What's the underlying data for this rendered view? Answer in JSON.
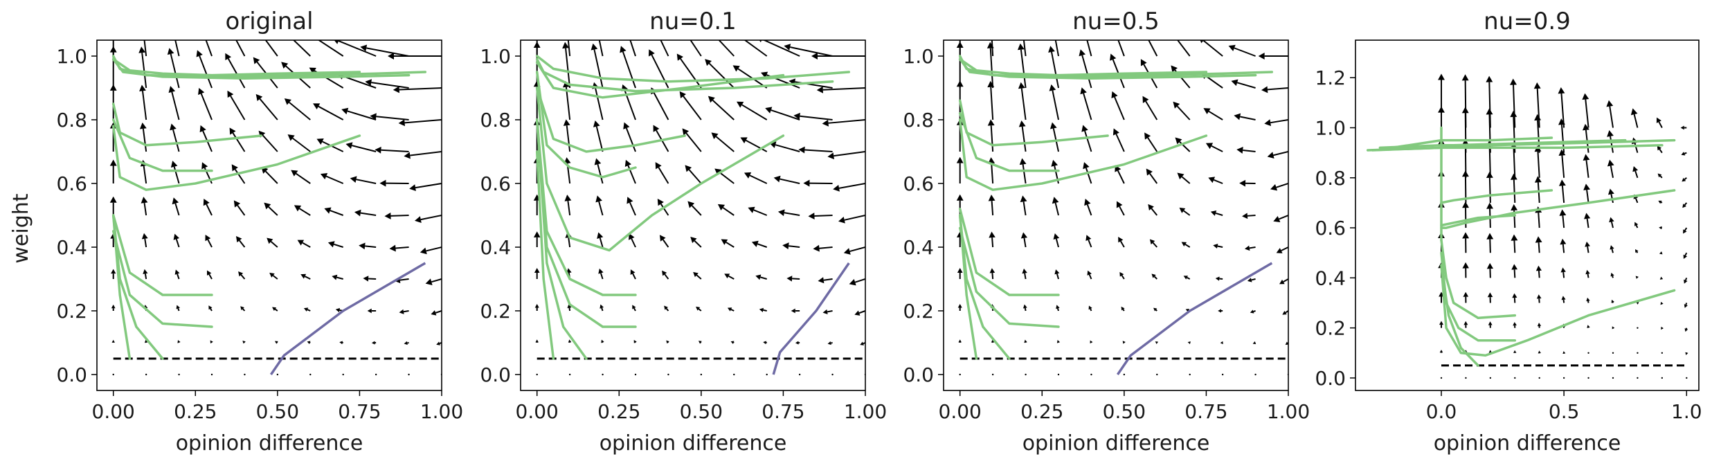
{
  "figure": {
    "ylabel": "weight"
  },
  "chart_data": [
    {
      "type": "quiver",
      "title": "original",
      "xlabel": "opinion difference",
      "ylabel": "weight",
      "xlim": [
        -0.05,
        1.0
      ],
      "ylim": [
        -0.05,
        1.05
      ],
      "xticks": [
        0.0,
        0.25,
        0.5,
        0.75,
        1.0
      ],
      "xticklabels": [
        "0.00",
        "0.25",
        "0.50",
        "0.75",
        "1.00"
      ],
      "yticks": [
        0.0,
        0.2,
        0.4,
        0.6,
        0.8,
        1.0
      ],
      "yticklabels": [
        "0.0",
        "0.2",
        "0.4",
        "0.6",
        "0.8",
        "1.0"
      ],
      "nu": 0.0,
      "threshold": 0.05,
      "trajectories": [
        {
          "x": [
            0.95,
            0.8,
            0.6,
            0.3,
            0.1,
            0.02,
            0.0
          ],
          "y": [
            0.95,
            0.945,
            0.94,
            0.935,
            0.94,
            0.96,
            1.0
          ]
        },
        {
          "x": [
            0.9,
            0.7,
            0.4,
            0.15,
            0.03,
            0.0
          ],
          "y": [
            0.94,
            0.935,
            0.93,
            0.935,
            0.95,
            0.99
          ]
        },
        {
          "x": [
            0.75,
            0.5,
            0.3,
            0.15,
            0.05,
            0.0
          ],
          "y": [
            0.95,
            0.945,
            0.94,
            0.945,
            0.955,
            0.99
          ]
        },
        {
          "x": [
            0.45,
            0.25,
            0.1,
            0.02,
            0.0
          ],
          "y": [
            0.75,
            0.73,
            0.72,
            0.76,
            0.85
          ]
        },
        {
          "x": [
            0.3,
            0.15,
            0.05,
            0.0
          ],
          "y": [
            0.64,
            0.64,
            0.68,
            0.8
          ]
        },
        {
          "x": [
            0.75,
            0.5,
            0.25,
            0.1,
            0.02,
            0.0
          ],
          "y": [
            0.75,
            0.66,
            0.6,
            0.58,
            0.62,
            0.78
          ]
        },
        {
          "x": [
            0.3,
            0.15,
            0.05,
            0.0
          ],
          "y": [
            0.25,
            0.25,
            0.32,
            0.5
          ]
        },
        {
          "x": [
            0.3,
            0.15,
            0.05,
            0.0
          ],
          "y": [
            0.15,
            0.16,
            0.25,
            0.45
          ]
        },
        {
          "x": [
            0.15,
            0.07,
            0.02,
            0.0
          ],
          "y": [
            0.05,
            0.15,
            0.3,
            0.5
          ]
        },
        {
          "x": [
            0.05,
            0.02,
            0.0
          ],
          "y": [
            0.05,
            0.25,
            0.5
          ]
        }
      ],
      "separatrix": {
        "x": [
          0.48,
          0.52,
          0.7,
          0.95
        ],
        "y": [
          0.0,
          0.06,
          0.2,
          0.35
        ]
      }
    },
    {
      "type": "quiver",
      "title": "nu=0.1",
      "xlabel": "opinion difference",
      "ylabel": "",
      "xlim": [
        -0.05,
        1.0
      ],
      "ylim": [
        -0.05,
        1.05
      ],
      "xticks": [
        0.0,
        0.25,
        0.5,
        0.75,
        1.0
      ],
      "xticklabels": [
        "0.00",
        "0.25",
        "0.50",
        "0.75",
        "1.00"
      ],
      "yticks": [
        0.0,
        0.2,
        0.4,
        0.6,
        0.8,
        1.0
      ],
      "yticklabels": [
        "0.0",
        "0.2",
        "0.4",
        "0.6",
        "0.8",
        "1.0"
      ],
      "nu": 0.1,
      "threshold": 0.05,
      "trajectories": [
        {
          "x": [
            0.95,
            0.7,
            0.4,
            0.2,
            0.05,
            0.0
          ],
          "y": [
            0.95,
            0.93,
            0.92,
            0.93,
            0.96,
            1.0
          ]
        },
        {
          "x": [
            0.9,
            0.6,
            0.3,
            0.1,
            0.02,
            0.0
          ],
          "y": [
            0.92,
            0.9,
            0.89,
            0.91,
            0.95,
            0.99
          ]
        },
        {
          "x": [
            0.75,
            0.45,
            0.2,
            0.05,
            0.0
          ],
          "y": [
            0.94,
            0.9,
            0.87,
            0.9,
            0.98
          ]
        },
        {
          "x": [
            0.45,
            0.3,
            0.15,
            0.05,
            0.0
          ],
          "y": [
            0.75,
            0.72,
            0.7,
            0.74,
            0.9
          ]
        },
        {
          "x": [
            0.3,
            0.2,
            0.1,
            0.03,
            0.0
          ],
          "y": [
            0.65,
            0.62,
            0.65,
            0.72,
            0.95
          ]
        },
        {
          "x": [
            0.75,
            0.5,
            0.35,
            0.22,
            0.1,
            0.03,
            0.0
          ],
          "y": [
            0.75,
            0.6,
            0.5,
            0.39,
            0.43,
            0.6,
            0.9
          ]
        },
        {
          "x": [
            0.3,
            0.2,
            0.1,
            0.03,
            0.0
          ],
          "y": [
            0.25,
            0.25,
            0.3,
            0.45,
            0.8
          ]
        },
        {
          "x": [
            0.3,
            0.2,
            0.1,
            0.03,
            0.0
          ],
          "y": [
            0.15,
            0.15,
            0.22,
            0.4,
            0.8
          ]
        },
        {
          "x": [
            0.15,
            0.08,
            0.03,
            0.0
          ],
          "y": [
            0.05,
            0.15,
            0.35,
            0.8
          ]
        },
        {
          "x": [
            0.05,
            0.02,
            0.0
          ],
          "y": [
            0.05,
            0.3,
            0.7
          ]
        }
      ],
      "separatrix": {
        "x": [
          0.72,
          0.74,
          0.85,
          0.95
        ],
        "y": [
          0.0,
          0.07,
          0.2,
          0.35
        ]
      }
    },
    {
      "type": "quiver",
      "title": "nu=0.5",
      "xlabel": "opinion difference",
      "ylabel": "",
      "xlim": [
        -0.05,
        1.0
      ],
      "ylim": [
        -0.05,
        1.05
      ],
      "xticks": [
        0.0,
        0.25,
        0.5,
        0.75,
        1.0
      ],
      "xticklabels": [
        "0.00",
        "0.25",
        "0.50",
        "0.75",
        "1.00"
      ],
      "yticks": [
        0.0,
        0.2,
        0.4,
        0.6,
        0.8,
        1.0
      ],
      "yticklabels": [
        "0.0",
        "0.2",
        "0.4",
        "0.6",
        "0.8",
        "1.0"
      ],
      "nu": 0.5,
      "threshold": 0.05,
      "trajectories": [
        {
          "x": [
            0.95,
            0.8,
            0.6,
            0.3,
            0.1,
            0.02,
            0.0
          ],
          "y": [
            0.95,
            0.945,
            0.94,
            0.935,
            0.94,
            0.96,
            1.0
          ]
        },
        {
          "x": [
            0.9,
            0.7,
            0.4,
            0.15,
            0.03,
            0.0
          ],
          "y": [
            0.94,
            0.935,
            0.93,
            0.935,
            0.95,
            0.99
          ]
        },
        {
          "x": [
            0.75,
            0.5,
            0.3,
            0.15,
            0.05,
            0.0
          ],
          "y": [
            0.95,
            0.945,
            0.94,
            0.945,
            0.955,
            0.99
          ]
        },
        {
          "x": [
            0.45,
            0.25,
            0.1,
            0.02,
            0.0
          ],
          "y": [
            0.75,
            0.73,
            0.72,
            0.76,
            0.86
          ]
        },
        {
          "x": [
            0.3,
            0.15,
            0.05,
            0.0
          ],
          "y": [
            0.64,
            0.64,
            0.68,
            0.82
          ]
        },
        {
          "x": [
            0.75,
            0.5,
            0.25,
            0.1,
            0.02,
            0.0
          ],
          "y": [
            0.75,
            0.66,
            0.6,
            0.58,
            0.62,
            0.8
          ]
        },
        {
          "x": [
            0.3,
            0.15,
            0.05,
            0.0
          ],
          "y": [
            0.25,
            0.25,
            0.32,
            0.52
          ]
        },
        {
          "x": [
            0.3,
            0.15,
            0.05,
            0.0
          ],
          "y": [
            0.15,
            0.16,
            0.26,
            0.46
          ]
        },
        {
          "x": [
            0.15,
            0.07,
            0.02,
            0.0
          ],
          "y": [
            0.05,
            0.15,
            0.3,
            0.5
          ]
        },
        {
          "x": [
            0.05,
            0.02,
            0.0
          ],
          "y": [
            0.05,
            0.25,
            0.5
          ]
        }
      ],
      "separatrix": {
        "x": [
          0.48,
          0.52,
          0.7,
          0.95
        ],
        "y": [
          0.0,
          0.06,
          0.2,
          0.35
        ]
      }
    },
    {
      "type": "quiver",
      "title": "nu=0.9",
      "xlabel": "opinion difference",
      "ylabel": "",
      "xlim": [
        -0.35,
        1.05
      ],
      "ylim": [
        -0.05,
        1.35
      ],
      "xticks": [
        0.0,
        0.5,
        1.0
      ],
      "xticklabels": [
        "0.0",
        "0.5",
        "1.0"
      ],
      "yticks": [
        0.0,
        0.2,
        0.4,
        0.6,
        0.8,
        1.0,
        1.2
      ],
      "yticklabels": [
        "0.0",
        "0.2",
        "0.4",
        "0.6",
        "0.8",
        "1.0",
        "1.2"
      ],
      "nu": 0.9,
      "threshold": 0.05,
      "trajectories": [
        {
          "x": [
            0.95,
            0.6,
            0.2,
            0.0,
            -0.3
          ],
          "y": [
            0.95,
            0.94,
            0.93,
            0.92,
            0.91
          ]
        },
        {
          "x": [
            0.9,
            0.5,
            0.1,
            0.0,
            -0.28
          ],
          "y": [
            0.93,
            0.92,
            0.92,
            0.92,
            0.91
          ]
        },
        {
          "x": [
            0.75,
            0.4,
            0.05,
            0.0,
            -0.25
          ],
          "y": [
            0.95,
            0.94,
            0.93,
            0.93,
            0.92
          ]
        },
        {
          "x": [
            0.45,
            0.2,
            0.0,
            -0.2
          ],
          "y": [
            0.96,
            0.95,
            0.95,
            0.92
          ]
        },
        {
          "x": [
            0.0,
            0.0
          ],
          "y": [
            0.55,
            1.0
          ]
        },
        {
          "x": [
            0.45,
            0.2,
            0.05,
            0.0
          ],
          "y": [
            0.75,
            0.73,
            0.71,
            0.7
          ]
        },
        {
          "x": [
            0.3,
            0.15,
            0.05,
            0.0
          ],
          "y": [
            0.65,
            0.64,
            0.62,
            0.61
          ]
        },
        {
          "x": [
            0.95,
            0.6,
            0.3,
            0.1,
            0.02,
            0.0
          ],
          "y": [
            0.75,
            0.7,
            0.66,
            0.62,
            0.6,
            0.6
          ]
        },
        {
          "x": [
            0.3,
            0.15,
            0.05,
            0.02,
            0.0
          ],
          "y": [
            0.25,
            0.24,
            0.3,
            0.4,
            0.55
          ]
        },
        {
          "x": [
            0.3,
            0.15,
            0.07,
            0.02,
            0.0
          ],
          "y": [
            0.15,
            0.15,
            0.2,
            0.3,
            0.5
          ]
        },
        {
          "x": [
            0.95,
            0.6,
            0.35,
            0.18,
            0.08,
            0.02,
            0.0
          ],
          "y": [
            0.35,
            0.25,
            0.15,
            0.09,
            0.1,
            0.2,
            0.45
          ]
        },
        {
          "x": [
            0.15,
            0.08,
            0.03,
            0.0
          ],
          "y": [
            0.05,
            0.12,
            0.25,
            0.45
          ]
        }
      ],
      "separatrix": null
    }
  ]
}
